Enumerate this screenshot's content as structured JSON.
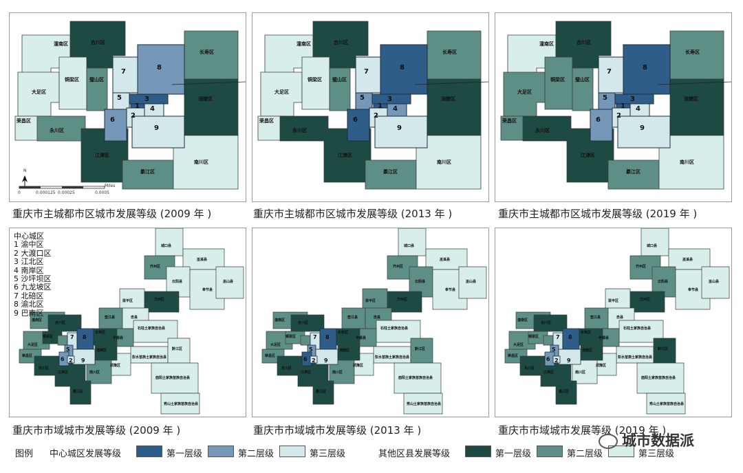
{
  "colors": {
    "center_tier1": "#2f5d8a",
    "center_tier2": "#7698b8",
    "center_tier3": "#d3e8ea",
    "other_tier1": "#1d4a42",
    "other_tier2": "#5e8f86",
    "other_tier3": "#d8eeea"
  },
  "maps": {
    "main_2009": {
      "caption": "重庆市主城都市区城市发展等级 (2009 年 )",
      "districts": {
        "tongnan": "潼南区",
        "hechuan": "合川区",
        "changshou": "长寿区",
        "dazu": "大足区",
        "tongliang": "铜梁区",
        "bishan": "璧山区",
        "fuling": "涪陵区",
        "rongchang": "荣昌区",
        "yongchuan": "永川区",
        "jiangjin": "江津区",
        "nanchuan": "南川区",
        "qijiang": "綦江区"
      },
      "center_numbers": [
        "1",
        "2",
        "3",
        "4",
        "5",
        "6",
        "7",
        "8",
        "9"
      ],
      "north": "N",
      "scale_ticks": [
        "0",
        "0.000125",
        "0.00025",
        "0.0005"
      ],
      "scale_unit": "Miles"
    },
    "main_2013": {
      "caption": "重庆市主城都市区城市发展等级 (2013 年 )",
      "districts": {
        "tongnan": "潼南区",
        "hechuan": "合川区",
        "changshou": "长寿区",
        "dazu": "大足区",
        "tongliang": "铜梁区",
        "bishan": "璧山区",
        "fuling": "涪陵区",
        "rongchang": "荣昌区",
        "yongchuan": "永川区",
        "jiangjin": "江津区",
        "nanchuan": "南川区",
        "qijiang": "綦江区"
      },
      "center_numbers": [
        "1",
        "2",
        "3",
        "4",
        "5",
        "6",
        "7",
        "8",
        "9"
      ]
    },
    "main_2019": {
      "caption": "重庆市主城都市区城市发展等级 (2019 年 )",
      "districts": {
        "tongnan": "潼南区",
        "hechuan": "合川区",
        "changshou": "长寿区",
        "dazu": "大足区",
        "tongliang": "铜梁区",
        "bishan": "璧山区",
        "fuling": "涪陵区",
        "rongchang": "荣昌区",
        "yongchuan": "永川区",
        "jiangjin": "江津区",
        "nanchuan": "南川区",
        "qijiang": "綦江区"
      },
      "center_numbers": [
        "1",
        "2",
        "3",
        "4",
        "5",
        "6",
        "7",
        "8",
        "9"
      ]
    },
    "city_2009": {
      "caption": "重庆市市域城市发展等级 (2009 年 )"
    },
    "city_2013": {
      "caption": "重庆市市域城市发展等级 (2013 年 )"
    },
    "city_2019": {
      "caption": "重庆市市域城市发展等级 (2019 年 )"
    }
  },
  "city_labels": {
    "chengkou": "城口县",
    "wuxi": "巫溪县",
    "kaizhou": "开州区",
    "yunyang": "云阳县",
    "fengjie": "奉节县",
    "wushan": "巫山县",
    "liangping": "梁平区",
    "wanzhou": "万州区",
    "dianjiang": "垫江县",
    "zhongxian": "忠县",
    "shizhu": "石柱土家族自治县",
    "fengdu": "丰都县",
    "pengshui": "彭水苗族土家族自治县",
    "qianjiang": "黔江区",
    "wulong": "武隆区",
    "youyang": "酉阳土家族苗族自治县",
    "xiushan": "秀山土家族苗族自治县",
    "tongnan": "潼南区",
    "hechuan": "合川区",
    "changshou": "长寿区",
    "dazu": "大足区",
    "tongliang": "铜梁区",
    "bishan": "璧山区",
    "fuling": "涪陵区",
    "rongchang": "荣昌区",
    "yongchuan": "永川区",
    "jiangjin": "江津区",
    "nanchuan": "南川区",
    "qijiang": "綦江区"
  },
  "center_list": {
    "title": "中心城区",
    "items": [
      "1 渝中区",
      "2 大渡口区",
      "3 江北区",
      "4 南岸区",
      "5 沙坪坝区",
      "6 九龙坡区",
      "7 北碚区",
      "8 渝北区",
      "9 巴南区"
    ]
  },
  "legend": {
    "title": "图例",
    "center_group": "中心城区发展等级",
    "other_group": "其他区县发展等级",
    "tier1": "第一层级",
    "tier2": "第二层级",
    "tier3": "第三层级"
  },
  "watermark": "城市数据派"
}
